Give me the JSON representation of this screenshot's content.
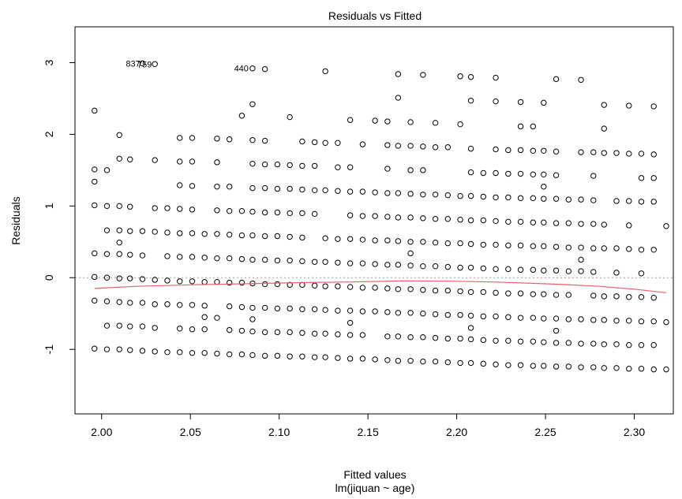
{
  "chart_data": {
    "type": "scatter",
    "title": "Residuals vs Fitted",
    "xlabel": "Fitted values",
    "xlabel_sub": "lm(jiquan ~ age)",
    "ylabel": "Residuals",
    "xlim": [
      1.985,
      2.322
    ],
    "ylim": [
      -1.9,
      3.5
    ],
    "xticks": [
      2.0,
      2.05,
      2.1,
      2.15,
      2.2,
      2.25,
      2.3
    ],
    "xtick_labels": [
      "2.00",
      "2.05",
      "2.10",
      "2.15",
      "2.20",
      "2.25",
      "2.30"
    ],
    "yticks": [
      -1,
      0,
      1,
      2,
      3
    ],
    "ytick_labels": [
      "-1",
      "0",
      "1",
      "2",
      "3"
    ],
    "reference_line_y": 0,
    "point_labels": [
      {
        "text": "837",
        "x": 2.024,
        "y": 2.99
      },
      {
        "text": "759",
        "x": 2.0305,
        "y": 2.98
      },
      {
        "text": "440",
        "x": 2.085,
        "y": 2.92
      }
    ],
    "columns": [
      {
        "x": 1.996,
        "y": [
          2.33,
          1.51,
          1.34,
          1.01,
          0.34,
          0.01,
          -0.32,
          -0.99
        ]
      },
      {
        "x": 2.003,
        "y": [
          1.5,
          1.0,
          0.66,
          0.33,
          0.0,
          -0.33,
          -0.67,
          -1.0
        ]
      },
      {
        "x": 2.01,
        "y": [
          1.99,
          1.66,
          1.0,
          0.66,
          0.49,
          0.33,
          -0.01,
          -0.34,
          -0.67,
          -1.0
        ]
      },
      {
        "x": 2.016,
        "y": [
          1.65,
          0.99,
          0.65,
          0.32,
          -0.01,
          -0.35,
          -0.68,
          -1.01
        ]
      },
      {
        "x": 2.023,
        "y": [
          2.99,
          0.65,
          0.31,
          -0.02,
          -0.35,
          -0.68,
          -1.02
        ]
      },
      {
        "x": 2.03,
        "y": [
          2.98,
          1.64,
          0.97,
          0.64,
          -0.03,
          -0.37,
          -0.7,
          -1.03
        ]
      },
      {
        "x": 2.037,
        "y": [
          0.97,
          0.63,
          0.3,
          -0.04,
          -0.37,
          -1.04
        ]
      },
      {
        "x": 2.044,
        "y": [
          1.95,
          1.62,
          1.29,
          0.96,
          0.62,
          0.29,
          -0.05,
          -0.38,
          -0.71,
          -1.04
        ]
      },
      {
        "x": 2.051,
        "y": [
          1.95,
          1.62,
          1.28,
          0.95,
          0.62,
          0.29,
          -0.05,
          -0.38,
          -0.72,
          -1.05
        ]
      },
      {
        "x": 2.058,
        "y": [
          0.61,
          0.28,
          -0.06,
          -0.39,
          -0.55,
          -0.72,
          -1.05
        ]
      },
      {
        "x": 2.065,
        "y": [
          1.94,
          1.61,
          1.27,
          0.94,
          0.61,
          0.27,
          -0.06,
          -0.56,
          -1.06
        ]
      },
      {
        "x": 2.072,
        "y": [
          1.93,
          1.27,
          0.93,
          0.6,
          0.27,
          -0.07,
          -0.4,
          -0.73,
          -1.07
        ]
      },
      {
        "x": 2.079,
        "y": [
          2.26,
          0.93,
          0.59,
          0.26,
          -0.07,
          -0.41,
          -0.74,
          -1.07
        ]
      },
      {
        "x": 2.085,
        "y": [
          2.92,
          2.42,
          1.92,
          1.59,
          1.25,
          0.92,
          0.59,
          0.25,
          -0.08,
          -0.42,
          -0.58,
          -0.75,
          -1.08
        ]
      },
      {
        "x": 2.092,
        "y": [
          2.91,
          1.91,
          1.58,
          1.25,
          0.91,
          0.58,
          0.25,
          -0.09,
          -0.42,
          -0.76,
          -1.09
        ]
      },
      {
        "x": 2.099,
        "y": [
          1.58,
          1.24,
          0.91,
          0.58,
          0.24,
          -0.09,
          -0.43,
          -0.76,
          -1.09
        ]
      },
      {
        "x": 2.106,
        "y": [
          2.24,
          1.57,
          1.24,
          0.9,
          0.57,
          0.24,
          -0.1,
          -0.43,
          -0.76,
          -1.1
        ]
      },
      {
        "x": 2.113,
        "y": [
          1.9,
          1.56,
          1.23,
          0.9,
          0.56,
          0.23,
          -0.1,
          -0.44,
          -0.77,
          -1.1
        ]
      },
      {
        "x": 2.12,
        "y": [
          1.89,
          1.56,
          1.22,
          0.89,
          0.22,
          -0.11,
          -0.44,
          -0.78,
          -1.11
        ]
      },
      {
        "x": 2.126,
        "y": [
          2.88,
          1.88,
          1.22,
          0.55,
          0.22,
          -0.12,
          -0.45,
          -0.78,
          -1.11
        ]
      },
      {
        "x": 2.133,
        "y": [
          1.88,
          1.54,
          1.21,
          0.54,
          0.21,
          -0.12,
          -0.46,
          -0.79,
          -1.12
        ]
      },
      {
        "x": 2.14,
        "y": [
          2.2,
          1.54,
          1.2,
          0.87,
          0.54,
          0.2,
          -0.13,
          -0.46,
          -0.63,
          -0.8,
          -1.13
        ]
      },
      {
        "x": 2.147,
        "y": [
          1.86,
          1.2,
          0.86,
          0.53,
          0.2,
          -0.14,
          -0.47,
          -0.8,
          -1.13
        ]
      },
      {
        "x": 2.154,
        "y": [
          2.19,
          1.19,
          0.86,
          0.52,
          0.19,
          -0.14,
          -0.47,
          -1.14
        ]
      },
      {
        "x": 2.161,
        "y": [
          2.18,
          1.85,
          1.52,
          1.18,
          0.85,
          0.52,
          0.18,
          -0.15,
          -0.48,
          -0.82,
          -1.15
        ]
      },
      {
        "x": 2.167,
        "y": [
          2.84,
          2.51,
          1.84,
          1.18,
          0.84,
          0.51,
          0.18,
          -0.16,
          -0.49,
          -0.82,
          -1.16
        ]
      },
      {
        "x": 2.174,
        "y": [
          2.17,
          1.84,
          1.5,
          1.17,
          0.84,
          0.5,
          0.34,
          0.17,
          -0.16,
          -0.49,
          -0.83,
          -1.16
        ]
      },
      {
        "x": 2.181,
        "y": [
          2.83,
          1.83,
          1.5,
          1.16,
          0.83,
          0.5,
          0.16,
          -0.17,
          -0.5,
          -0.83,
          -1.17
        ]
      },
      {
        "x": 2.188,
        "y": [
          2.16,
          1.82,
          1.16,
          0.82,
          0.49,
          0.16,
          -0.18,
          -0.51,
          -0.84,
          -1.17
        ]
      },
      {
        "x": 2.195,
        "y": [
          1.82,
          1.15,
          0.82,
          0.48,
          0.15,
          -0.18,
          -0.52,
          -0.85,
          -1.18
        ]
      },
      {
        "x": 2.202,
        "y": [
          2.81,
          2.14,
          1.14,
          0.81,
          0.48,
          0.14,
          -0.19,
          -0.52,
          -0.85,
          -1.19
        ]
      },
      {
        "x": 2.208,
        "y": [
          2.8,
          2.47,
          1.8,
          1.47,
          1.14,
          0.8,
          0.47,
          0.14,
          -0.2,
          -0.53,
          -0.7,
          -0.86,
          -1.19
        ]
      },
      {
        "x": 2.215,
        "y": [
          1.46,
          1.13,
          0.8,
          0.46,
          0.13,
          -0.2,
          -0.54,
          -0.87,
          -1.2
        ]
      },
      {
        "x": 2.222,
        "y": [
          2.79,
          2.46,
          1.79,
          1.46,
          1.12,
          0.79,
          0.46,
          0.12,
          -0.21,
          -0.54,
          -0.88,
          -1.21
        ]
      },
      {
        "x": 2.229,
        "y": [
          1.78,
          1.45,
          1.12,
          0.78,
          0.45,
          0.12,
          -0.22,
          -0.55,
          -0.88,
          -1.22
        ]
      },
      {
        "x": 2.236,
        "y": [
          2.45,
          2.11,
          1.78,
          1.45,
          1.11,
          0.78,
          0.45,
          0.11,
          -0.22,
          -0.56,
          -0.89,
          -1.22
        ]
      },
      {
        "x": 2.243,
        "y": [
          2.11,
          1.77,
          1.44,
          1.11,
          0.77,
          0.44,
          0.11,
          -0.23,
          -0.56,
          -0.89,
          -1.23
        ]
      },
      {
        "x": 2.249,
        "y": [
          2.44,
          1.77,
          1.44,
          1.27,
          1.1,
          0.77,
          0.44,
          0.1,
          -0.23,
          -0.57,
          -0.9,
          -1.23
        ]
      },
      {
        "x": 2.256,
        "y": [
          2.77,
          1.76,
          1.43,
          1.1,
          0.76,
          0.43,
          0.1,
          -0.24,
          -0.57,
          -0.74,
          -0.91,
          -1.24
        ]
      },
      {
        "x": 2.263,
        "y": [
          1.09,
          0.76,
          0.42,
          0.09,
          -0.24,
          -0.58,
          -0.91,
          -1.24
        ]
      },
      {
        "x": 2.27,
        "y": [
          2.76,
          1.75,
          1.09,
          0.75,
          0.42,
          0.25,
          0.09,
          -0.58,
          -0.92,
          -1.25
        ]
      },
      {
        "x": 2.277,
        "y": [
          1.75,
          1.42,
          1.08,
          0.75,
          0.41,
          0.08,
          -0.25,
          -0.59,
          -0.92,
          -1.25
        ]
      },
      {
        "x": 2.283,
        "y": [
          2.41,
          2.08,
          1.74,
          0.74,
          0.41,
          -0.26,
          -0.59,
          -0.93,
          -1.26
        ]
      },
      {
        "x": 2.29,
        "y": [
          1.74,
          1.07,
          0.41,
          0.07,
          -0.26,
          -0.6,
          -0.93,
          -1.26
        ]
      },
      {
        "x": 2.297,
        "y": [
          2.4,
          1.73,
          1.07,
          0.73,
          0.4,
          -0.27,
          -0.6,
          -0.94,
          -1.27
        ]
      },
      {
        "x": 2.304,
        "y": [
          1.73,
          1.39,
          1.06,
          0.39,
          0.06,
          -0.27,
          -0.61,
          -0.94,
          -1.27
        ]
      },
      {
        "x": 2.311,
        "y": [
          2.39,
          1.72,
          1.39,
          1.06,
          0.39,
          -0.28,
          -0.61,
          -0.94,
          -1.28
        ]
      },
      {
        "x": 2.318,
        "y": [
          0.72,
          -0.62,
          -1.28
        ]
      }
    ],
    "smooth_line": {
      "color": "#e8606a",
      "points": [
        [
          1.996,
          -0.15
        ],
        [
          2.02,
          -0.12
        ],
        [
          2.05,
          -0.1
        ],
        [
          2.08,
          -0.085
        ],
        [
          2.11,
          -0.07
        ],
        [
          2.14,
          -0.06
        ],
        [
          2.17,
          -0.045
        ],
        [
          2.2,
          -0.05
        ],
        [
          2.22,
          -0.06
        ],
        [
          2.24,
          -0.075
        ],
        [
          2.26,
          -0.095
        ],
        [
          2.28,
          -0.12
        ],
        [
          2.3,
          -0.16
        ],
        [
          2.318,
          -0.21
        ]
      ]
    }
  }
}
